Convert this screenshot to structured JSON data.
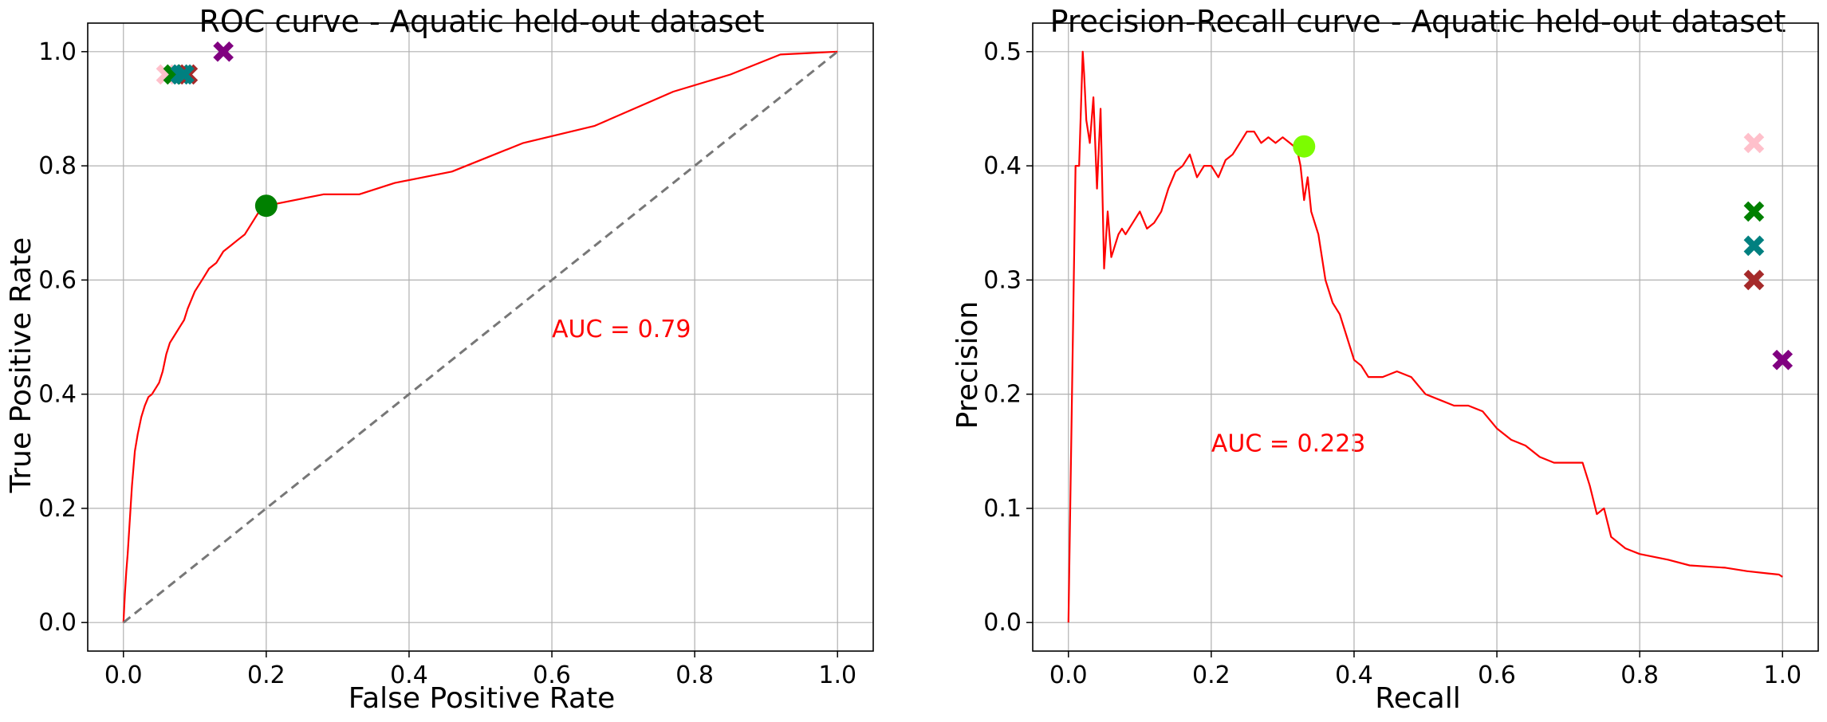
{
  "chart_data": [
    {
      "type": "line",
      "title": "ROC curve - Aquatic held-out dataset",
      "xlabel": "False Positive Rate",
      "ylabel": "True Positive Rate",
      "xlim": [
        -0.05,
        1.05
      ],
      "ylim": [
        -0.05,
        1.05
      ],
      "grid": true,
      "xticks": [
        0.0,
        0.2,
        0.4,
        0.6,
        0.8,
        1.0
      ],
      "yticks": [
        0.0,
        0.2,
        0.4,
        0.6,
        0.8,
        1.0
      ],
      "xtick_labels": [
        "0.0",
        "0.2",
        "0.4",
        "0.6",
        "0.8",
        "1.0"
      ],
      "ytick_labels": [
        "0.0",
        "0.2",
        "0.4",
        "0.6",
        "0.8",
        "1.0"
      ],
      "annotations": [
        {
          "text": "AUC = 0.79",
          "x": 0.6,
          "y": 0.5,
          "color": "#ff0000"
        }
      ],
      "series": [
        {
          "style": "line",
          "color": "#ff0000",
          "x": [
            0,
            0.002,
            0.004,
            0.006,
            0.008,
            0.01,
            0.012,
            0.014,
            0.016,
            0.02,
            0.025,
            0.03,
            0.035,
            0.04,
            0.05,
            0.055,
            0.06,
            0.065,
            0.07,
            0.08,
            0.085,
            0.09,
            0.1,
            0.11,
            0.115,
            0.12,
            0.13,
            0.14,
            0.15,
            0.16,
            0.17,
            0.18,
            0.19,
            0.2,
            0.28,
            0.33,
            0.38,
            0.46,
            0.51,
            0.56,
            0.66,
            0.77,
            0.85,
            0.92,
            1.0
          ],
          "y": [
            0.0,
            0.05,
            0.09,
            0.12,
            0.16,
            0.2,
            0.24,
            0.27,
            0.3,
            0.33,
            0.36,
            0.38,
            0.395,
            0.4,
            0.42,
            0.44,
            0.47,
            0.49,
            0.5,
            0.52,
            0.53,
            0.55,
            0.58,
            0.6,
            0.61,
            0.62,
            0.63,
            0.65,
            0.66,
            0.67,
            0.68,
            0.7,
            0.72,
            0.73,
            0.75,
            0.75,
            0.77,
            0.79,
            0.815,
            0.84,
            0.87,
            0.93,
            0.96,
            0.995,
            1.0
          ]
        },
        {
          "style": "dashed",
          "color": "#777777",
          "x": [
            0,
            1
          ],
          "y": [
            0,
            1
          ]
        },
        {
          "style": "circle",
          "color": "#008000",
          "x": [
            0.2
          ],
          "y": [
            0.73
          ]
        },
        {
          "style": "cross",
          "x": [
            0.06,
            0.07,
            0.08,
            0.09,
            0.085,
            0.14
          ],
          "y": [
            0.96,
            0.96,
            0.96,
            0.96,
            0.96,
            1.0
          ],
          "colors": [
            "#ffc0cb",
            "#008000",
            "#008080",
            "#a52a2a",
            "#008080",
            "#800080"
          ]
        }
      ]
    },
    {
      "type": "line",
      "title": "Precision-Recall curve - Aquatic held-out dataset",
      "xlabel": "Recall",
      "ylabel": "Precision",
      "xlim": [
        -0.05,
        1.05
      ],
      "ylim": [
        -0.025,
        0.525
      ],
      "grid": true,
      "xticks": [
        0.0,
        0.2,
        0.4,
        0.6,
        0.8,
        1.0
      ],
      "yticks": [
        0.0,
        0.1,
        0.2,
        0.3,
        0.4,
        0.5
      ],
      "xtick_labels": [
        "0.0",
        "0.2",
        "0.4",
        "0.6",
        "0.8",
        "1.0"
      ],
      "ytick_labels": [
        "0.0",
        "0.1",
        "0.2",
        "0.3",
        "0.4",
        "0.5"
      ],
      "annotations": [
        {
          "text": "AUC = 0.223",
          "x": 0.2,
          "y": 0.15,
          "color": "#ff0000"
        }
      ],
      "series": [
        {
          "style": "line",
          "color": "#ff0000",
          "x": [
            0,
            0.01,
            0.015,
            0.02,
            0.022,
            0.025,
            0.03,
            0.035,
            0.04,
            0.045,
            0.05,
            0.055,
            0.06,
            0.07,
            0.075,
            0.08,
            0.09,
            0.1,
            0.11,
            0.12,
            0.13,
            0.14,
            0.15,
            0.16,
            0.17,
            0.18,
            0.19,
            0.2,
            0.21,
            0.22,
            0.23,
            0.24,
            0.25,
            0.26,
            0.27,
            0.28,
            0.29,
            0.3,
            0.31,
            0.32,
            0.325,
            0.33,
            0.335,
            0.34,
            0.35,
            0.36,
            0.37,
            0.38,
            0.39,
            0.4,
            0.41,
            0.42,
            0.44,
            0.46,
            0.48,
            0.5,
            0.52,
            0.54,
            0.56,
            0.58,
            0.6,
            0.62,
            0.64,
            0.66,
            0.68,
            0.72,
            0.73,
            0.74,
            0.75,
            0.76,
            0.78,
            0.8,
            0.84,
            0.87,
            0.92,
            0.95,
            0.98,
            0.995,
            1.0
          ],
          "y": [
            0.0,
            0.4,
            0.4,
            0.5,
            0.48,
            0.44,
            0.42,
            0.46,
            0.38,
            0.45,
            0.31,
            0.36,
            0.32,
            0.34,
            0.345,
            0.34,
            0.35,
            0.36,
            0.345,
            0.35,
            0.36,
            0.38,
            0.395,
            0.4,
            0.41,
            0.39,
            0.4,
            0.4,
            0.39,
            0.405,
            0.41,
            0.42,
            0.43,
            0.43,
            0.42,
            0.425,
            0.42,
            0.425,
            0.42,
            0.415,
            0.4,
            0.37,
            0.39,
            0.36,
            0.34,
            0.3,
            0.28,
            0.27,
            0.25,
            0.23,
            0.225,
            0.215,
            0.215,
            0.22,
            0.215,
            0.2,
            0.195,
            0.19,
            0.19,
            0.185,
            0.17,
            0.16,
            0.155,
            0.145,
            0.14,
            0.14,
            0.12,
            0.095,
            0.1,
            0.075,
            0.065,
            0.06,
            0.055,
            0.05,
            0.048,
            0.045,
            0.043,
            0.042,
            0.04
          ]
        },
        {
          "style": "circle",
          "color": "#7cfc00",
          "x": [
            0.33
          ],
          "y": [
            0.417
          ]
        },
        {
          "style": "cross",
          "x": [
            0.96,
            0.96,
            0.96,
            0.96,
            1.0
          ],
          "y": [
            0.42,
            0.36,
            0.33,
            0.3,
            0.23
          ],
          "colors": [
            "#ffc0cb",
            "#008000",
            "#008080",
            "#a52a2a",
            "#800080"
          ]
        }
      ]
    }
  ]
}
